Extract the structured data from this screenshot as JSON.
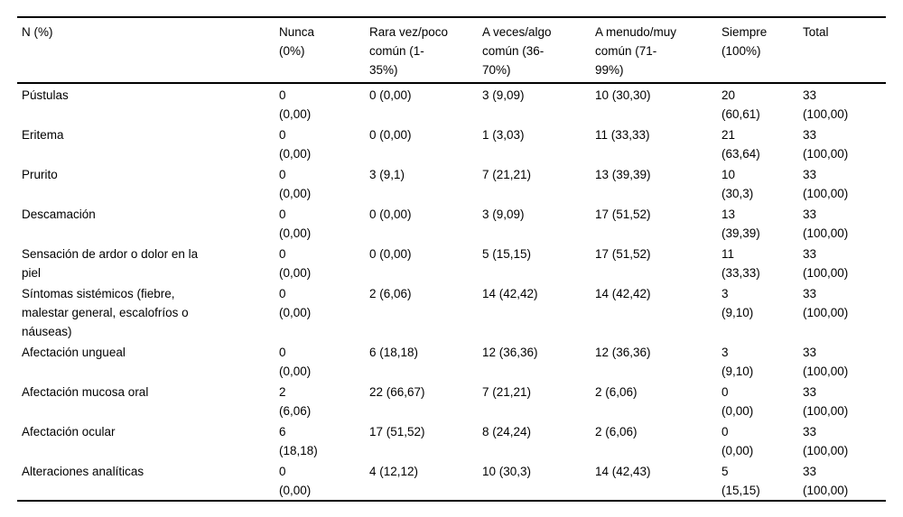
{
  "table": {
    "columns": [
      "N (%)",
      "Nunca\n(0%)",
      "Rara vez/poco\ncomún (1-\n35%)",
      "A veces/algo\ncomún (36-\n70%)",
      "A menudo/muy\ncomún (71-\n99%)",
      "Siempre\n(100%)",
      "Total"
    ],
    "rows": [
      {
        "label": "Pústulas",
        "cells": [
          "0\n(0,00)",
          "0 (0,00)",
          "3 (9,09)",
          "10 (30,30)",
          "20\n(60,61)",
          "33\n(100,00)"
        ]
      },
      {
        "label": "Eritema",
        "cells": [
          "0\n(0,00)",
          "0 (0,00)",
          "1 (3,03)",
          "11 (33,33)",
          "21\n(63,64)",
          "33\n(100,00)"
        ]
      },
      {
        "label": "Prurito",
        "cells": [
          "0\n(0,00)",
          "3 (9,1)",
          "7 (21,21)",
          "13 (39,39)",
          "10\n(30,3)",
          "33\n(100,00)"
        ]
      },
      {
        "label": "Descamación",
        "cells": [
          "0\n(0,00)",
          "0 (0,00)",
          "3 (9,09)",
          "17 (51,52)",
          "13\n(39,39)",
          "33\n(100,00)"
        ]
      },
      {
        "label": "Sensación de ardor o dolor en la\npiel",
        "cells": [
          "0\n(0,00)",
          "0 (0,00)",
          "5 (15,15)",
          "17 (51,52)",
          "11\n(33,33)",
          "33\n(100,00)"
        ]
      },
      {
        "label": "Síntomas sistémicos (fiebre,\nmalestar general, escalofríos o\nnáuseas)",
        "cells": [
          "0\n(0,00)",
          "2 (6,06)",
          "14 (42,42)",
          "14 (42,42)",
          "3\n(9,10)",
          "33\n(100,00)"
        ]
      },
      {
        "label": "Afectación ungueal",
        "cells": [
          "0\n(0,00)",
          "6 (18,18)",
          "12 (36,36)",
          "12 (36,36)",
          "3\n(9,10)",
          "33\n(100,00)"
        ]
      },
      {
        "label": "Afectación mucosa oral",
        "cells": [
          "2\n(6,06)",
          "22 (66,67)",
          "7 (21,21)",
          "2 (6,06)",
          "0\n(0,00)",
          "33\n(100,00)"
        ]
      },
      {
        "label": "Afectación ocular",
        "cells": [
          "6\n(18,18)",
          "17 (51,52)",
          "8 (24,24)",
          "2 (6,06)",
          "0\n(0,00)",
          "33\n(100,00)"
        ]
      },
      {
        "label": "Alteraciones analíticas",
        "cells": [
          "0\n(0,00)",
          "4 (12,12)",
          "10 (30,3)",
          "14 (42,43)",
          "5\n(15,15)",
          "33\n(100,00)"
        ]
      }
    ]
  }
}
